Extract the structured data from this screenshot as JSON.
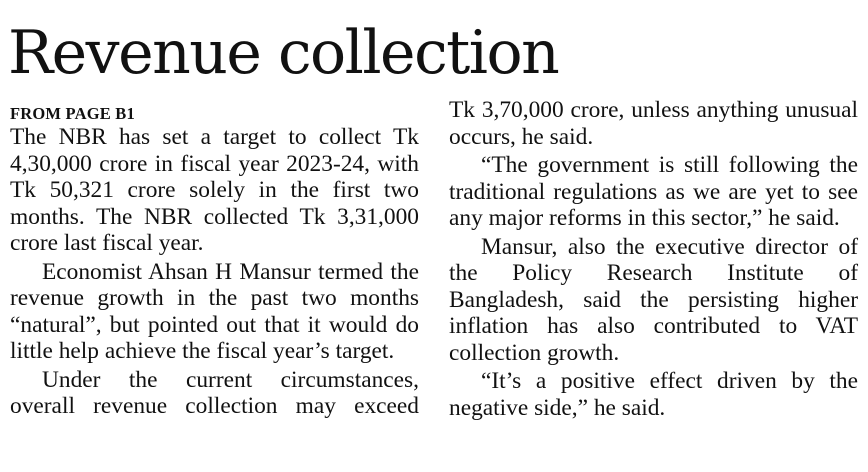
{
  "article": {
    "headline": "Revenue collection",
    "kicker": "FROM PAGE B1",
    "left_column": [
      "The NBR has set a target to collect Tk 4,30,000 crore in fiscal year 2023-24, with Tk 50,321 crore solely in the first two months. The NBR collected Tk 3,31,000 crore last fiscal year.",
      "Economist Ahsan H Mansur termed the revenue growth in the past two months “natural”, but pointed out that it would do little help achieve the fiscal year’s target.",
      "Under the current circumstances, overall revenue collection may exceed"
    ],
    "right_column": [
      "Tk 3,70,000 crore, unless anything unusual occurs, he said.",
      "“The government is still following the traditional regulations as we are yet to see any major reforms in this sector,” he said.",
      "Mansur, also the executive director of the Policy Research Institute of Bangladesh, said the persisting higher inflation has also contributed to VAT collection growth.",
      "“It’s a positive effect driven by the negative side,” he said."
    ]
  }
}
